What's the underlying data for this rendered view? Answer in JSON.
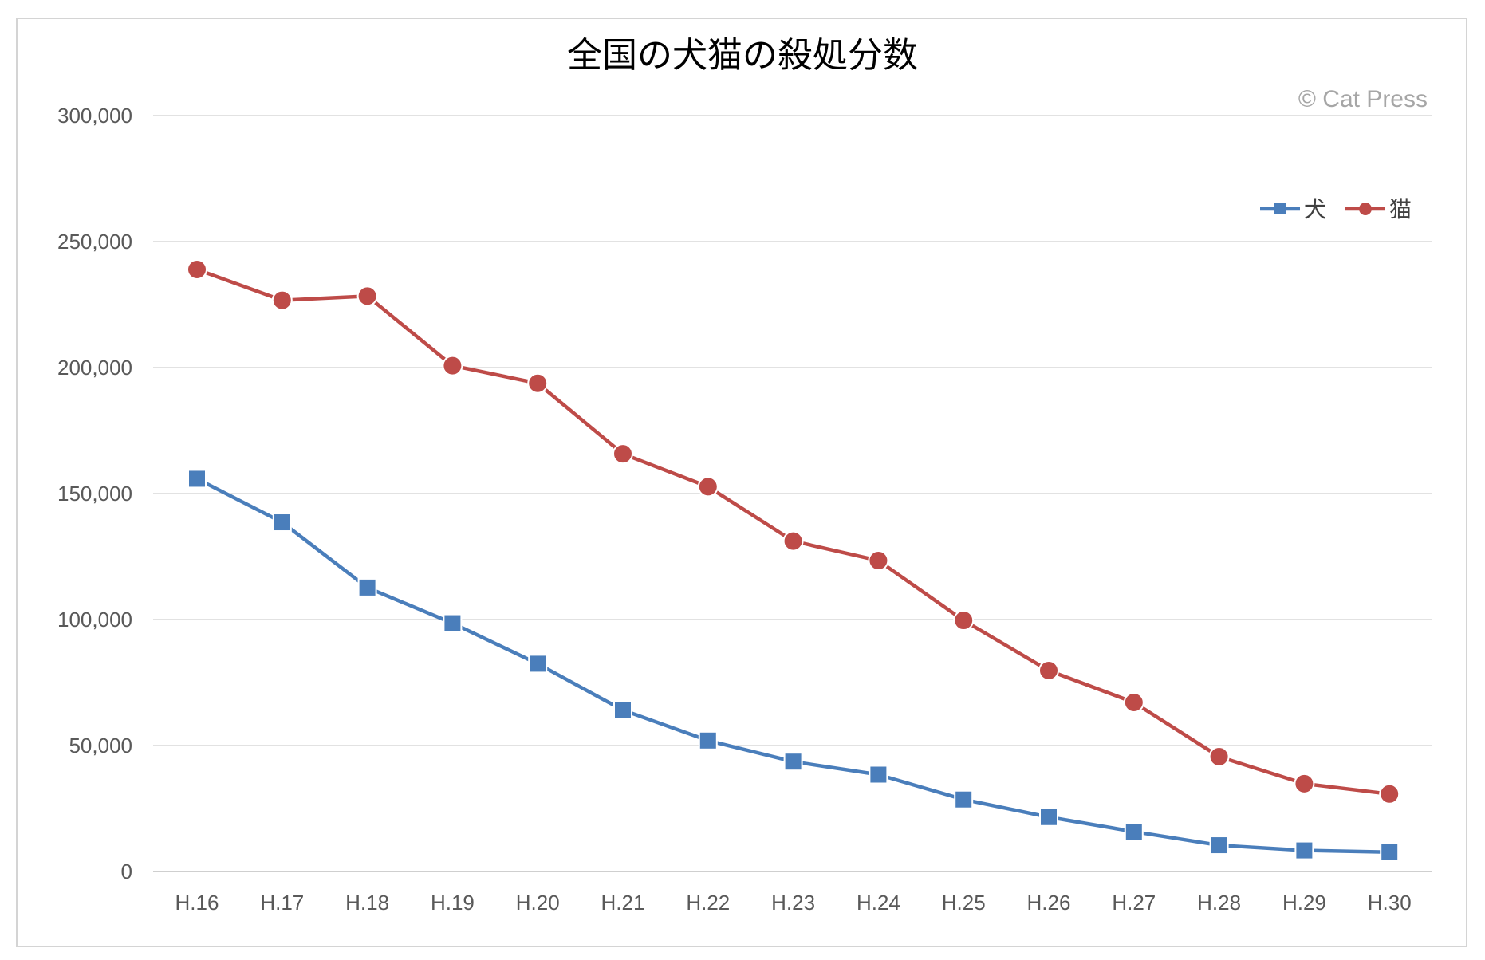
{
  "chart_data": {
    "type": "line",
    "title": "全国の犬猫の殺処分数",
    "watermark": "© Cat Press",
    "categories": [
      "H.16",
      "H.17",
      "H.18",
      "H.19",
      "H.20",
      "H.21",
      "H.22",
      "H.23",
      "H.24",
      "H.25",
      "H.26",
      "H.27",
      "H.28",
      "H.29",
      "H.30"
    ],
    "series": [
      {
        "name": "犬",
        "color": "#4a7ebb",
        "marker": "square",
        "values": [
          155870,
          138599,
          112690,
          98556,
          82464,
          64061,
          51964,
          43606,
          38447,
          28570,
          21593,
          15811,
          10424,
          8362,
          7687
        ]
      },
      {
        "name": "猫",
        "color": "#be4b48",
        "marker": "circle",
        "values": [
          238929,
          226702,
          228373,
          200760,
          193748,
          165771,
          152729,
          131136,
          123400,
          99671,
          79745,
          67091,
          45574,
          34854,
          30757
        ]
      }
    ],
    "ylim": [
      0,
      300000
    ],
    "yticks": [
      "0",
      "50,000",
      "100,000",
      "150,000",
      "200,000",
      "250,000",
      "300,000"
    ],
    "ytick_values": [
      0,
      50000,
      100000,
      150000,
      200000,
      250000,
      300000
    ],
    "grid": true,
    "legend_position": "top-right",
    "xlabel": "",
    "ylabel": ""
  }
}
